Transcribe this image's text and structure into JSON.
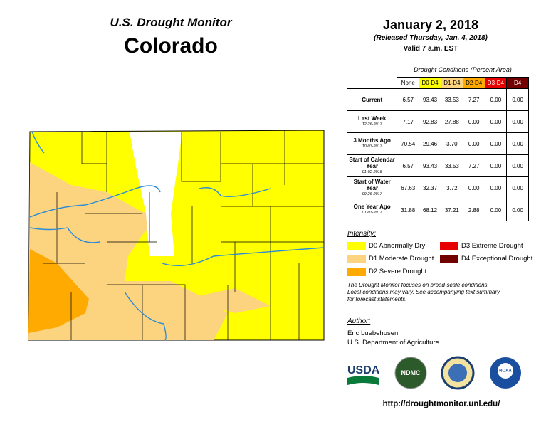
{
  "header": {
    "title": "U.S. Drought Monitor",
    "state": "Colorado"
  },
  "date": {
    "title": "January 2, 2018",
    "released": "(Released Thursday, Jan. 4, 2018)",
    "valid": "Valid 7 a.m. EST"
  },
  "table": {
    "caption": "Drought Conditions (Percent Area)",
    "columns": [
      "None",
      "D0-D4",
      "D1-D4",
      "D2-D4",
      "D3-D4",
      "D4"
    ],
    "rows": [
      {
        "label": "Current",
        "values": [
          "6.57",
          "93.43",
          "33.53",
          "7.27",
          "0.00",
          "0.00"
        ]
      },
      {
        "label": "Last Week",
        "date": "12-26-2017",
        "values": [
          "7.17",
          "92.83",
          "27.88",
          "0.00",
          "0.00",
          "0.00"
        ]
      },
      {
        "label": "3 Months Ago",
        "date": "10-03-2017",
        "values": [
          "70.54",
          "29.46",
          "3.70",
          "0.00",
          "0.00",
          "0.00"
        ]
      },
      {
        "label": "Start of Calendar Year",
        "date": "01-02-2018",
        "values": [
          "6.57",
          "93.43",
          "33.53",
          "7.27",
          "0.00",
          "0.00"
        ]
      },
      {
        "label": "Start of Water Year",
        "date": "09-26-2017",
        "values": [
          "67.63",
          "32.37",
          "3.72",
          "0.00",
          "0.00",
          "0.00"
        ]
      },
      {
        "label": "One Year Ago",
        "date": "01-03-2017",
        "values": [
          "31.88",
          "68.12",
          "37.21",
          "2.88",
          "0.00",
          "0.00"
        ]
      }
    ]
  },
  "legend": {
    "title": "Intensity:",
    "items": [
      {
        "label": "D0 Abnormally Dry",
        "color": "#ffff00"
      },
      {
        "label": "D1 Moderate Drought",
        "color": "#fcd37f"
      },
      {
        "label": "D2 Severe Drought",
        "color": "#ffaa00"
      },
      {
        "label": "D3 Extreme Drought",
        "color": "#e60000"
      },
      {
        "label": "D4 Exceptional Drought",
        "color": "#730000"
      }
    ]
  },
  "note": [
    "The Drought Monitor focuses on broad-scale conditions.",
    "Local conditions may vary. See accompanying text summary",
    "for forecast statements."
  ],
  "author": {
    "title": "Author:",
    "name": "Eric Luebehusen",
    "org": "U.S. Department of Agriculture"
  },
  "logos": [
    "USDA",
    "NDMC",
    "NOAA"
  ],
  "url": "http://droughtmonitor.unl.edu/"
}
